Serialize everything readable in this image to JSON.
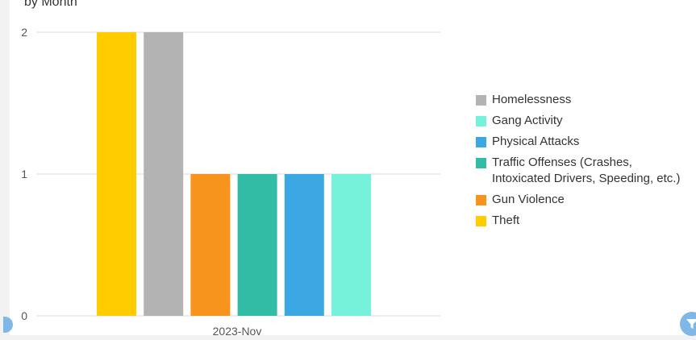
{
  "header": {
    "title": "by Month"
  },
  "chart_data": {
    "type": "bar",
    "categories": [
      "2023-Nov"
    ],
    "series": [
      {
        "name": "Theft",
        "color": "#ffcc00",
        "values": [
          2
        ]
      },
      {
        "name": "Homelessness",
        "color": "#b3b3b3",
        "values": [
          2
        ]
      },
      {
        "name": "Gun Violence",
        "color": "#f7941d",
        "values": [
          1
        ]
      },
      {
        "name": "Traffic Offenses (Crashes, Intoxicated Drivers, Speeding, etc.)",
        "color": "#31bda5",
        "values": [
          1
        ]
      },
      {
        "name": "Physical Attacks",
        "color": "#3ba8e3",
        "values": [
          1
        ]
      },
      {
        "name": "Gang Activity",
        "color": "#76f2da",
        "values": [
          1
        ]
      }
    ],
    "legend_order": [
      "Homelessness",
      "Gang Activity",
      "Physical Attacks",
      "Traffic Offenses (Crashes, Intoxicated Drivers, Speeding, etc.)",
      "Gun Violence",
      "Theft"
    ],
    "yticks": [
      0,
      1,
      2
    ],
    "ylim": [
      0,
      2
    ],
    "legend_position": "right",
    "grid": true
  },
  "controls": {
    "filter_icon": "filter-icon"
  }
}
